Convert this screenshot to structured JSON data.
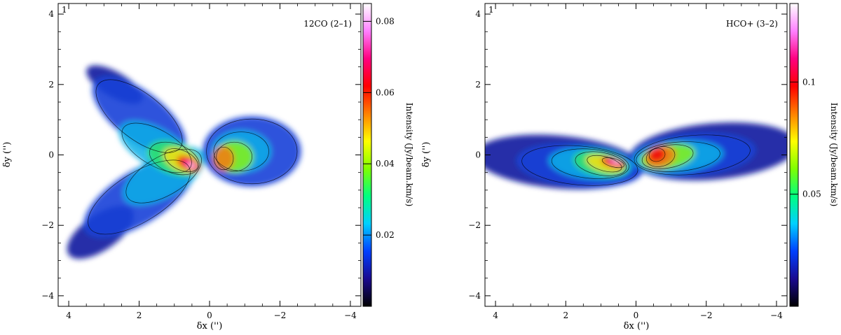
{
  "chart_data": [
    {
      "type": "heatmap",
      "panel_label": "1",
      "title": "12CO (2–1)",
      "xlabel": "δx ('')",
      "ylabel": "δy ('')",
      "x_axis_reversed": true,
      "xlim": [
        4.3,
        -4.3
      ],
      "ylim": [
        -4.3,
        4.3
      ],
      "xticks": [
        4,
        2,
        0,
        -2,
        -4
      ],
      "xtick_labels": [
        "4",
        "2",
        "0",
        "−2",
        "−4"
      ],
      "yticks": [
        -4,
        -2,
        0,
        2,
        4
      ],
      "ytick_labels": [
        "−4",
        "−2",
        "0",
        "2",
        "4"
      ],
      "colorbar": {
        "label": "Intensity (Jy/beam.km/s)",
        "range": [
          0.0,
          0.085
        ],
        "ticks": [
          0.02,
          0.04,
          0.06,
          0.08
        ],
        "tick_labels": [
          "0.02",
          "0.04",
          "0.06",
          "0.08"
        ]
      },
      "colormap": [
        "#000000",
        "#1a0a90",
        "#0040ff",
        "#00d0ff",
        "#00ff80",
        "#80ff00",
        "#ffff00",
        "#ff8000",
        "#ff0000",
        "#ff0080",
        "#ff80ff",
        "#ffffff"
      ],
      "structure": "X-shaped (butterfly) emission centred on the origin, peak near (0.6, -0.25)",
      "peak_intensity": 0.083
    },
    {
      "type": "heatmap",
      "panel_label": "1",
      "title": "HCO+ (3–2)",
      "xlabel": "δx ('')",
      "ylabel": "δy ('')",
      "x_axis_reversed": true,
      "xlim": [
        4.3,
        -4.3
      ],
      "ylim": [
        -4.3,
        4.3
      ],
      "xticks": [
        4,
        2,
        0,
        -2,
        -4
      ],
      "xtick_labels": [
        "4",
        "2",
        "0",
        "−2",
        "−4"
      ],
      "yticks": [
        -4,
        -2,
        0,
        2,
        4
      ],
      "ytick_labels": [
        "−4",
        "−2",
        "0",
        "2",
        "4"
      ],
      "colorbar": {
        "label": "Intensity (Jy/beam.km/s)",
        "range": [
          0.0,
          0.135
        ],
        "ticks": [
          0.05,
          0.1
        ],
        "tick_labels": [
          "0.05",
          "0.1"
        ]
      },
      "colormap": [
        "#000000",
        "#1a0a90",
        "#0040ff",
        "#00d0ff",
        "#00ff80",
        "#80ff00",
        "#ffff00",
        "#ff8000",
        "#ff0000",
        "#ff0080",
        "#ff80ff",
        "#ffffff"
      ],
      "structure": "Elongated bipolar (bow-tie) emission along the x axis, peak near (0.6, -0.2)",
      "peak_intensity": 0.13
    }
  ]
}
